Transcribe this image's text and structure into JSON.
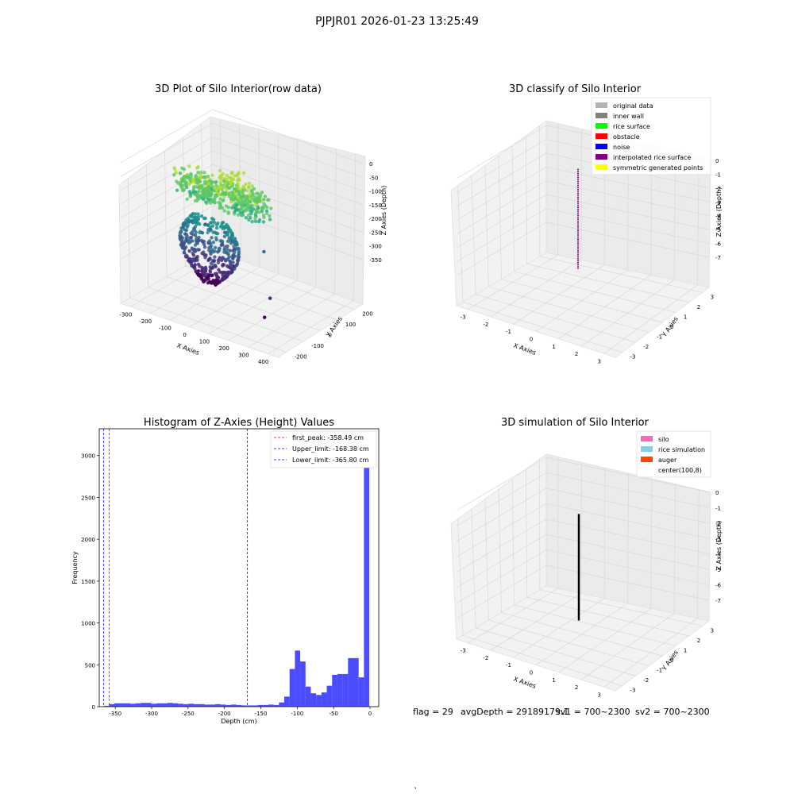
{
  "figure_title": "PJPJR01 2026-01-23 13:25:49",
  "status_bar": {
    "flag": "flag = 29",
    "avg_depth": "avgDepth = 29189179.1",
    "sv1": "sv1 = 700~2300",
    "sv2": "sv2 = 700~2300",
    "footer": "`"
  },
  "chart_data": [
    {
      "type": "scatter3d",
      "title": "3D Plot of Silo Interior(row data)",
      "xlabel": "X Axies",
      "ylabel": "Y Axies",
      "zlabel": "Z Axies (Depth)",
      "xticks": [
        "-300",
        "-200",
        "-100",
        "0",
        "100",
        "200",
        "300",
        "400"
      ],
      "yticks": [
        "-200",
        "-100",
        "0",
        "100",
        "200"
      ],
      "zticks": [
        "0",
        "-50",
        "-100",
        "-150",
        "-200",
        "-250",
        "-300",
        "-350"
      ],
      "zlim": [
        -370,
        10
      ],
      "colormap": "viridis",
      "outlier_points": [
        {
          "x": 330,
          "y": -150,
          "z": -300
        },
        {
          "x": 330,
          "y": -200,
          "z": -350
        },
        {
          "x": 140,
          "y": 120,
          "z": -250
        },
        {
          "x": -160,
          "y": 80,
          "z": -250
        }
      ]
    },
    {
      "type": "scatter3d",
      "title": "3D classify of Silo Interior",
      "xlabel": "X Axies",
      "ylabel": "Y Axies",
      "zlabel": "Z Axies (Depth)",
      "xticks": [
        "-3",
        "-2",
        "-1",
        "0",
        "1",
        "2",
        "3"
      ],
      "yticks": [
        "-3",
        "-2",
        "-1",
        "0",
        "1",
        "2",
        "3"
      ],
      "zticks": [
        "0",
        "-1",
        "-2",
        "-3",
        "-4",
        "-5",
        "-6",
        "-7"
      ],
      "legend_position": "top-right",
      "legend": [
        {
          "label": "original data",
          "color": "#b3b3b3"
        },
        {
          "label": "inner wall",
          "color": "#808080"
        },
        {
          "label": "rice surface",
          "color": "#00ff00"
        },
        {
          "label": "obstacle",
          "color": "#ff0000"
        },
        {
          "label": "noise",
          "color": "#0000ff"
        },
        {
          "label": "interpolated rice surface",
          "color": "#800080"
        },
        {
          "label": "symmetric generated points",
          "color": "#ffff00"
        }
      ],
      "vertical_line": {
        "x": 0,
        "y": 0,
        "z_from": -0.5,
        "z_to": -7.5,
        "color": "#800080"
      }
    },
    {
      "type": "bar",
      "title": "Histogram of Z-Axies (Height) Values",
      "xlabel": "Depth (cm)",
      "ylabel": "Frequency",
      "xlim": [
        -372,
        12
      ],
      "ylim": [
        0,
        3320
      ],
      "xticks": [
        -350,
        -300,
        -250,
        -200,
        -150,
        -100,
        -50,
        0
      ],
      "yticks": [
        0,
        500,
        1000,
        1500,
        2000,
        2500,
        3000
      ],
      "bar_color": "#0000ff",
      "bin_width": 7.3,
      "bin_left_edges": [
        -366,
        -358.7,
        -351.4,
        -344.1,
        -336.8,
        -329.5,
        -322.2,
        -314.9,
        -307.6,
        -300.3,
        -293,
        -285.7,
        -278.4,
        -271.1,
        -263.8,
        -256.5,
        -249.2,
        -241.9,
        -234.6,
        -227.3,
        -220,
        -212.7,
        -205.4,
        -198.1,
        -190.8,
        -183.5,
        -176.2,
        -168.9,
        -161.6,
        -154.3,
        -147,
        -139.7,
        -132.4,
        -125.1,
        -117.8,
        -110.5,
        -103.2,
        -95.9,
        -88.6,
        -81.3,
        -74,
        -66.7,
        -59.4,
        -52.1,
        -44.8,
        -37.5,
        -30.2,
        -22.9,
        -15.6,
        -8.3,
        -1
      ],
      "values": [
        10,
        30,
        40,
        40,
        40,
        35,
        40,
        45,
        45,
        35,
        40,
        40,
        45,
        40,
        35,
        30,
        35,
        30,
        30,
        25,
        25,
        30,
        25,
        20,
        25,
        20,
        15,
        15,
        15,
        20,
        20,
        25,
        20,
        50,
        120,
        450,
        670,
        540,
        240,
        160,
        140,
        170,
        250,
        380,
        390,
        390,
        580,
        580,
        350,
        3150
      ],
      "reference_lines": [
        {
          "label": "first_peak: -358.49 cm",
          "x": -358.49,
          "color": "#ff0000",
          "style": "dashed"
        },
        {
          "label": "Upper_limit: -168.38 cm",
          "x": -168.38,
          "color": "#0000ff",
          "style": "dashed"
        },
        {
          "label": "Lower_limit: -365.80 cm",
          "x": -365.8,
          "color": "#0000ff",
          "style": "dashed"
        }
      ],
      "legend_position": "top-right"
    },
    {
      "type": "scatter3d",
      "title": "3D simulation of Silo Interior",
      "xlabel": "X Axies",
      "ylabel": "Y Axies",
      "zlabel": "Z Axies (Depth)",
      "xticks": [
        "-3",
        "-2",
        "-1",
        "0",
        "1",
        "2",
        "3"
      ],
      "yticks": [
        "-3",
        "-2",
        "-1",
        "0",
        "1",
        "2",
        "3"
      ],
      "zticks": [
        "0",
        "-1",
        "-2",
        "-3",
        "-4",
        "-5",
        "-6",
        "-7"
      ],
      "legend_position": "top-right",
      "legend": [
        {
          "label": "silo",
          "color": "#ff69b4"
        },
        {
          "label": "rice simulation",
          "color": "#87ceeb"
        },
        {
          "label": "auger",
          "color": "#ff4500"
        },
        {
          "label": "center(100,8)",
          "color": "#ffffff"
        }
      ],
      "vertical_line": {
        "x": 0,
        "y": 0,
        "z_from": -1,
        "z_to": -7.8,
        "color": "#000000"
      }
    }
  ]
}
